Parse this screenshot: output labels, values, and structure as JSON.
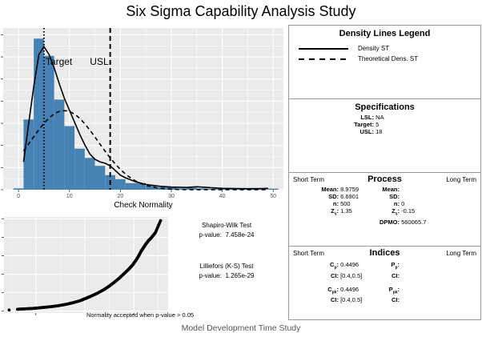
{
  "title": "Six Sigma Capability Analysis Study",
  "footer": "Model Development Time Study",
  "chart_data": [
    {
      "type": "bar",
      "xlabel": "Check Normality",
      "ylabel": "",
      "xlim": [
        -3,
        52
      ],
      "ylim": [
        0,
        0.122
      ],
      "xticks": [
        "0",
        "10",
        "20",
        "30",
        "40",
        "50"
      ],
      "grid": true,
      "bar_color": "#4682b4",
      "bins": {
        "edges": [
          -1,
          1,
          3,
          5,
          7,
          9,
          11,
          13,
          15,
          17,
          19,
          21,
          23,
          25,
          27,
          29,
          31,
          33,
          35,
          37,
          39,
          41,
          43,
          45,
          47,
          49,
          51
        ],
        "density": [
          0.001,
          0.053,
          0.114,
          0.101,
          0.068,
          0.048,
          0.031,
          0.024,
          0.018,
          0.011,
          0.008,
          0.005,
          0.005,
          0.003,
          0.002,
          0.002,
          0.001,
          0.0015,
          0.001,
          0.0008,
          0.0006,
          0.0005,
          0.0004,
          0.0004,
          0.0003,
          0.0008
        ]
      },
      "density_st": {
        "x": [
          1,
          2,
          3,
          4,
          5,
          6,
          7,
          8,
          9,
          10,
          11,
          12,
          13,
          14,
          15,
          16,
          17,
          18,
          19,
          20,
          21,
          22,
          23,
          25,
          28,
          30,
          33,
          35,
          38,
          40,
          44,
          47,
          49
        ],
        "y": [
          0.021,
          0.05,
          0.078,
          0.102,
          0.108,
          0.102,
          0.092,
          0.08,
          0.069,
          0.06,
          0.051,
          0.042,
          0.034,
          0.027,
          0.023,
          0.021,
          0.02,
          0.018,
          0.0145,
          0.011,
          0.009,
          0.0075,
          0.006,
          0.004,
          0.0025,
          0.002,
          0.0017,
          0.0022,
          0.0015,
          0.001,
          0.0008,
          0.0008,
          0.001
        ]
      },
      "theoretical": {
        "mean": 8.9759,
        "sd": 6.6901,
        "from": 1,
        "to": 49
      },
      "vlines": [
        {
          "label": "Target",
          "value": 5,
          "style": "dotted"
        },
        {
          "label": "USL",
          "value": 18,
          "style": "dashed"
        }
      ]
    },
    {
      "type": "scatter",
      "xlim": [
        -3.3,
        3.4
      ],
      "ylim": [
        -1,
        51
      ],
      "grid": true,
      "theoretical_quantiles": [
        -3.09,
        -2.75,
        -2.5,
        -2.2,
        -2.0,
        -1.7,
        -1.4,
        -1.1,
        -0.8,
        -0.5,
        -0.2,
        0,
        0.2,
        0.5,
        0.8,
        1.0,
        1.2,
        1.4,
        1.6,
        1.8,
        1.95,
        2.1,
        2.2,
        2.3,
        2.4,
        2.5,
        2.6,
        2.7,
        2.88,
        3.09
      ],
      "sample_quantiles": [
        0.6,
        1.0,
        1.2,
        1.4,
        1.6,
        2.0,
        2.4,
        2.9,
        3.6,
        4.5,
        5.6,
        6.7,
        7.8,
        9.6,
        11.8,
        13.6,
        15.6,
        17.8,
        20.3,
        22.8,
        25.0,
        27.8,
        30.0,
        32.5,
        34.5,
        36.5,
        38.2,
        39.5,
        42.5,
        49.0
      ],
      "note": "Normality accepted when p-value > 0.05"
    }
  ],
  "tests": {
    "shapiro": {
      "name": "Shapiro-Wilk Test",
      "label": "p-value:",
      "value": "7.458e-24"
    },
    "lilliefors": {
      "name": "Lilliefors (K-S) Test",
      "label": "p-value:",
      "value": "1.265e-29"
    }
  },
  "legend": {
    "title": "Density Lines Legend",
    "items": [
      {
        "label": "Density ST",
        "style": "solid"
      },
      {
        "label": "Theoretical Dens. ST",
        "style": "dashed"
      }
    ]
  },
  "specs": {
    "title": "Specifications",
    "lsl_label": "LSL:",
    "lsl": "NA",
    "target_label": "Target:",
    "target": "5",
    "usl_label": "USL:",
    "usl": "18"
  },
  "process": {
    "title": "Process",
    "short": "Short Term",
    "long": "Long Term",
    "st": {
      "mean": "8.9759",
      "sd": "6.6901",
      "n": "500",
      "zs": "1.35"
    },
    "lt": {
      "mean": "",
      "sd": "",
      "n": "0",
      "zs": "-0.15",
      "dpmo": "560065.7"
    },
    "labels": {
      "mean": "Mean:",
      "sd": "SD:",
      "n": "n:",
      "z": "Z",
      "zsub": "s",
      "colon": ":",
      "dpmo": "DPMO:"
    }
  },
  "indices": {
    "title": "Indices",
    "short": "Short Term",
    "long": "Long Term",
    "cp": "0.4496",
    "cp_ci": "[0.4,0.5]",
    "cpk": "0.4496",
    "cpk_ci": "[0.4,0.5]",
    "labels": {
      "c": "C",
      "p": "P",
      "sub_p": "p",
      "sub_pk": "pk",
      "colon": ":",
      "ci": "CI:"
    }
  }
}
